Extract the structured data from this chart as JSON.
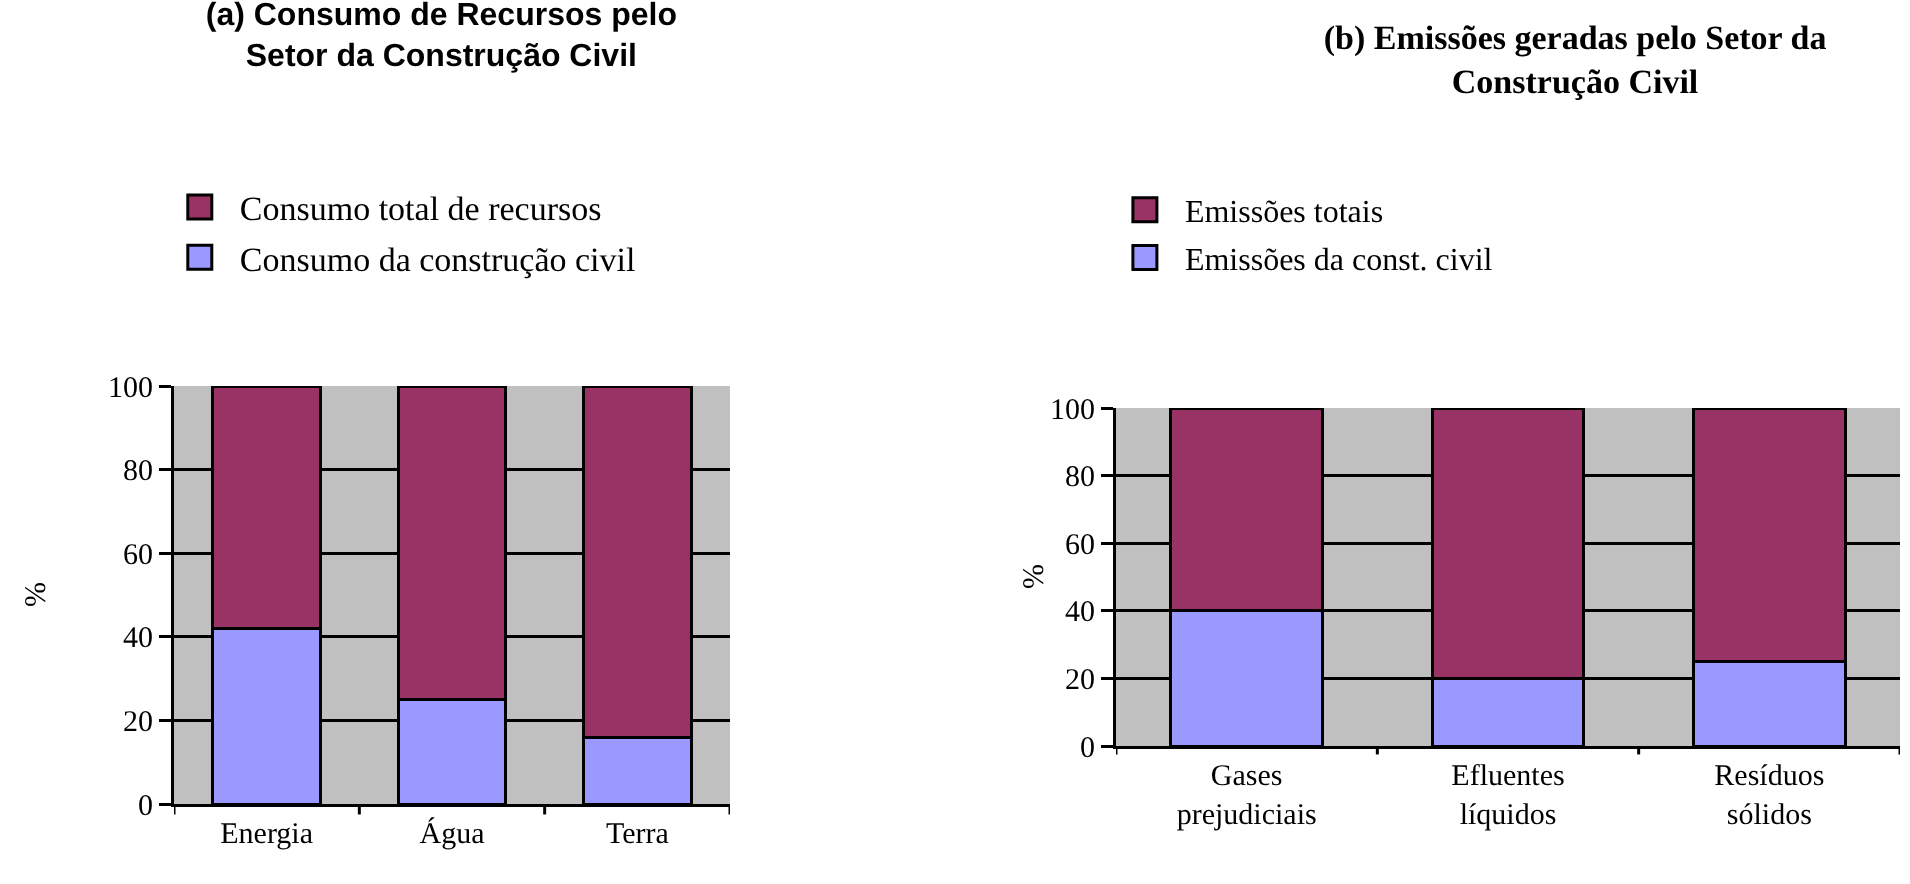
{
  "chart_data": [
    {
      "type": "bar",
      "title": "(a) Consumo de Recursos pelo Setor da Construção Civil",
      "ylabel": "%",
      "categories": [
        "Energia",
        "Água",
        "Terra"
      ],
      "stacked": true,
      "series": [
        {
          "name": "Consumo da construção civil",
          "color": "#9999ff",
          "values": [
            42,
            25,
            16
          ]
        },
        {
          "name": "Consumo total de recursos",
          "color": "#993366",
          "values": [
            58,
            75,
            84
          ]
        }
      ],
      "ylim": [
        0,
        100
      ],
      "yticks": [
        0,
        20,
        40,
        60,
        80,
        100
      ],
      "grid": "y",
      "legend": "top left"
    },
    {
      "type": "bar",
      "title": "(b) Emissões geradas pelo Setor da Construção Civil",
      "ylabel": "%",
      "categories": [
        "Gases prejudiciais",
        "Efluentes líquidos",
        "Resíduos sólidos"
      ],
      "stacked": true,
      "series": [
        {
          "name": "Emissões da const. civil",
          "color": "#9999ff",
          "values": [
            40,
            20,
            25
          ]
        },
        {
          "name": "Emissões totais",
          "color": "#993366",
          "values": [
            60,
            80,
            75
          ]
        }
      ],
      "ylim": [
        0,
        100
      ],
      "yticks": [
        0,
        20,
        40,
        60,
        80,
        100
      ],
      "grid": "y",
      "legend": "top left"
    }
  ]
}
